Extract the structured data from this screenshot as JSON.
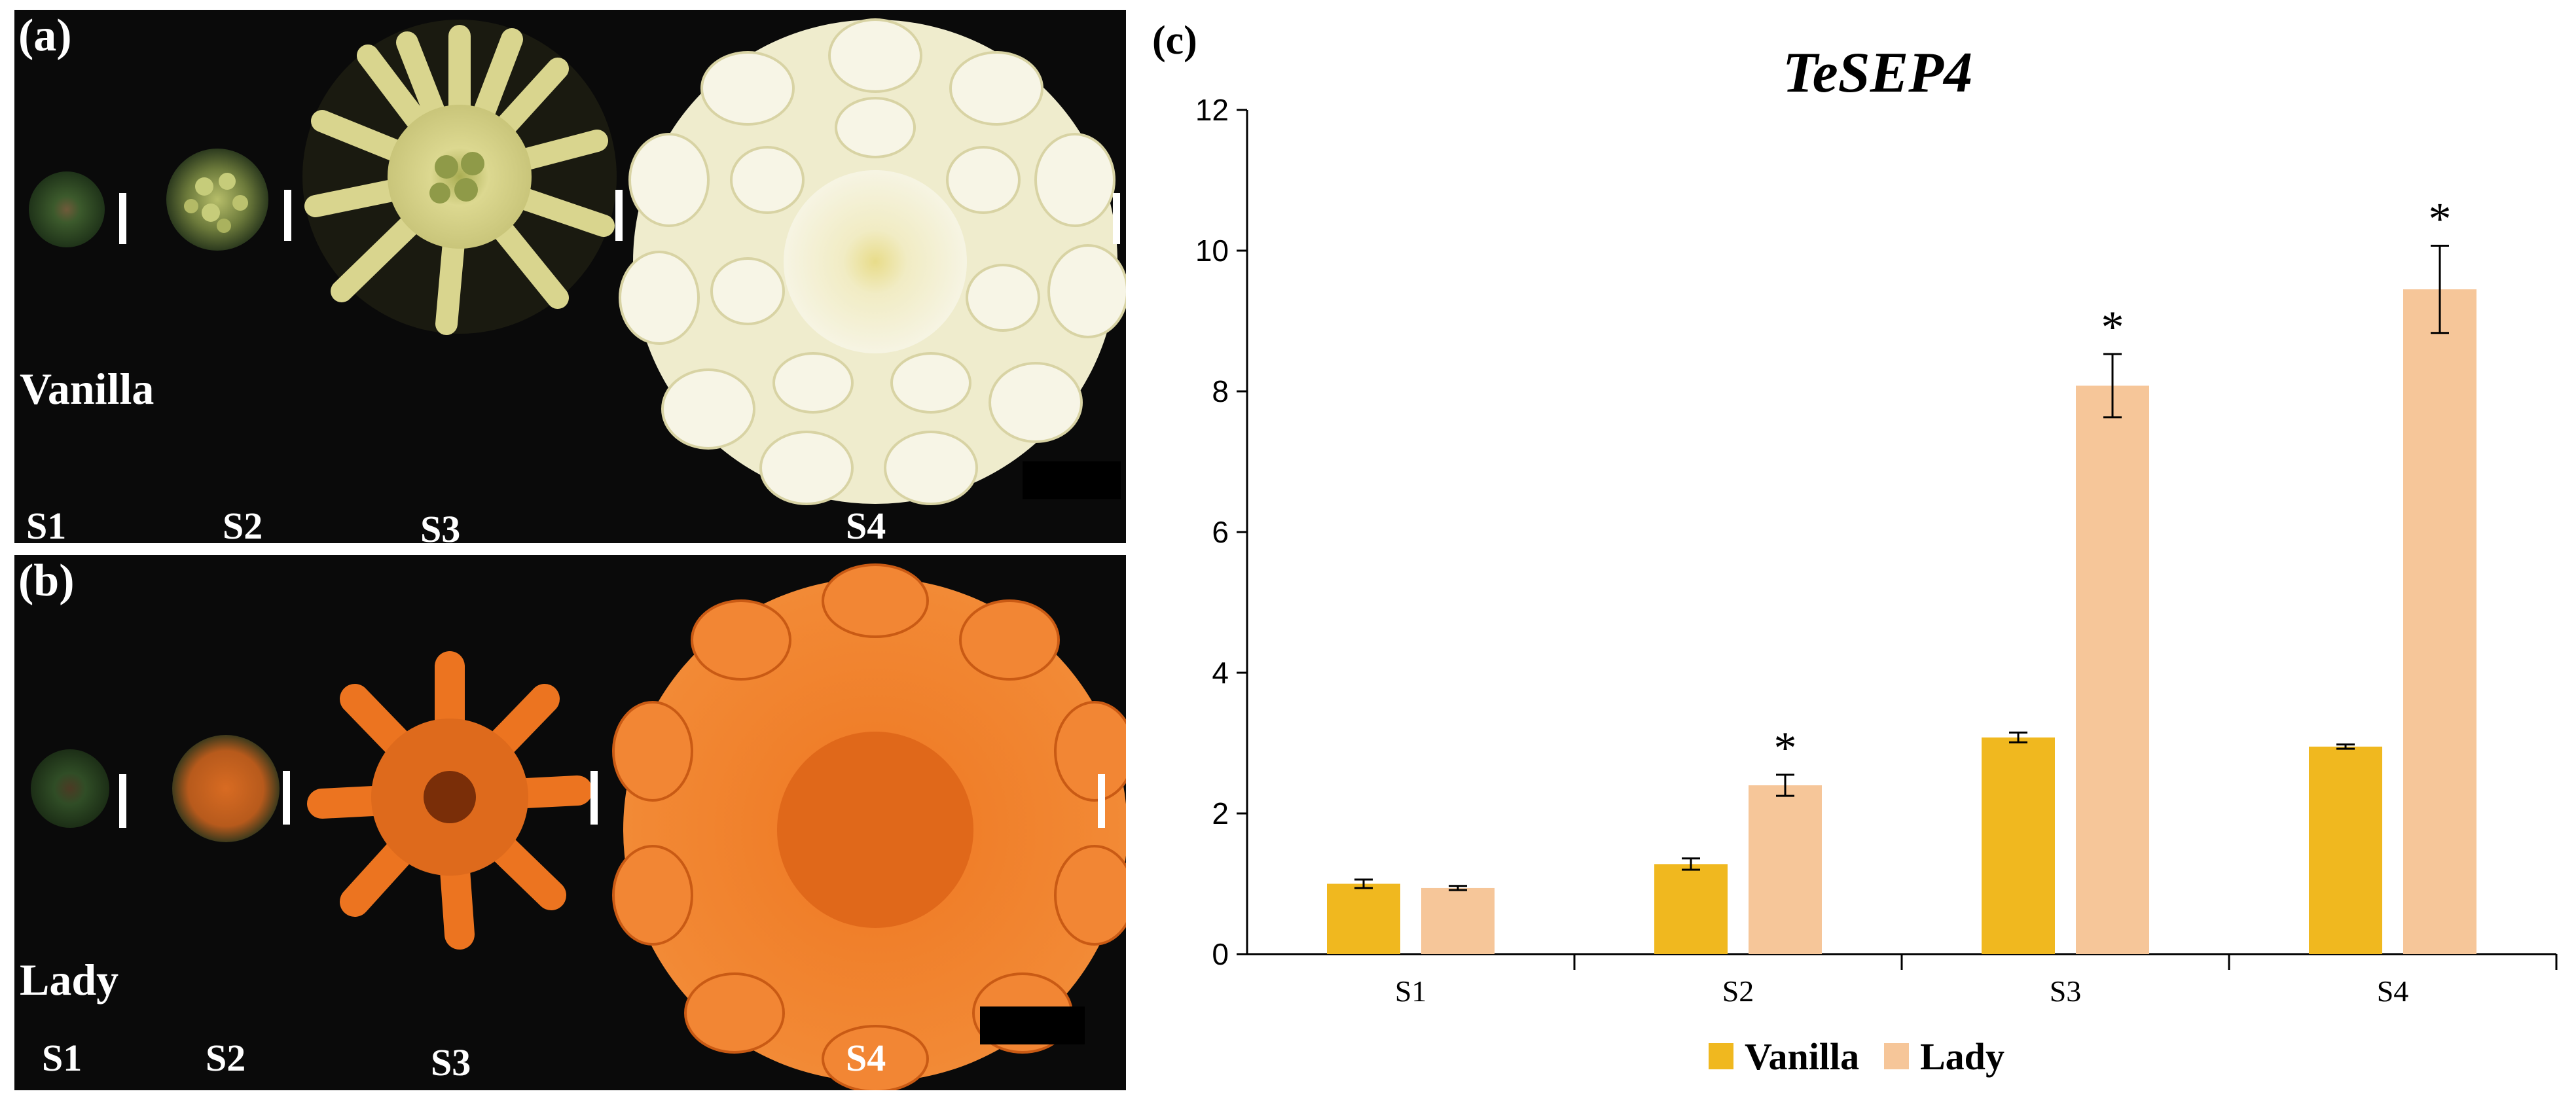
{
  "panel_a": {
    "label": "(a)",
    "cultivar": "Vanilla",
    "stages": [
      "S1",
      "S2",
      "S3",
      "S4"
    ]
  },
  "panel_b": {
    "label": "(b)",
    "cultivar": "Lady",
    "stages": [
      "S1",
      "S2",
      "S3",
      "S4"
    ]
  },
  "colors": {
    "vanilla": "#f0b81f",
    "lady": "#f6c699",
    "panel_bg": "#0a0a0a",
    "vanilla_flower": "#f2efd2",
    "vanilla_center": "#e8de8f",
    "lady_flower": "#f07a24",
    "bud_green": "#2f4a26"
  },
  "chart_data": {
    "panel_label": "(c)",
    "type": "bar",
    "title": "TeSEP4",
    "categories": [
      "S1",
      "S2",
      "S3",
      "S4"
    ],
    "series": [
      {
        "name": "Vanilla",
        "values": [
          1.0,
          1.28,
          3.08,
          2.95
        ],
        "errors": [
          0.06,
          0.08,
          0.07,
          0.03
        ]
      },
      {
        "name": "Lady",
        "values": [
          0.94,
          2.4,
          8.08,
          9.45
        ],
        "errors": [
          0.03,
          0.15,
          0.45,
          0.62
        ]
      }
    ],
    "significance": [
      "",
      "*",
      "*",
      "*"
    ],
    "ylim": [
      0,
      12
    ],
    "yticks": [
      0,
      2,
      4,
      6,
      8,
      10,
      12
    ],
    "xlabel": "",
    "ylabel": "",
    "legend": "bottom-center",
    "grid": false
  }
}
